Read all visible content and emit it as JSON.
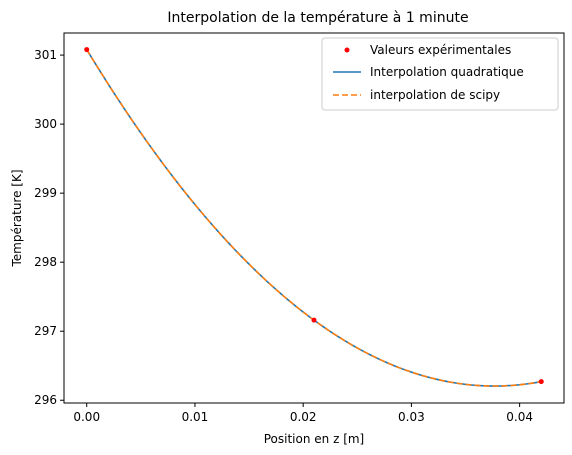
{
  "chart_data": {
    "type": "line",
    "title": "Interpolation de la température à 1 minute",
    "xlabel": "Position en z [m]",
    "ylabel": "Température [K]",
    "xlim": [
      -0.0021,
      0.0441
    ],
    "ylim": [
      295.96,
      301.32
    ],
    "xticks": [
      0.0,
      0.01,
      0.02,
      0.03,
      0.04
    ],
    "xtick_labels": [
      "0.00",
      "0.01",
      "0.02",
      "0.03",
      "0.04"
    ],
    "yticks": [
      296,
      297,
      298,
      299,
      300,
      301
    ],
    "ytick_labels": [
      "296",
      "297",
      "298",
      "299",
      "300",
      "301"
    ],
    "grid": false,
    "legend_position": "top-right",
    "series": [
      {
        "name": "Valeurs expérimentales",
        "style": "points",
        "color": "#ff0000",
        "x": [
          0.0,
          0.021,
          0.042
        ],
        "y": [
          301.08,
          297.16,
          296.27
        ]
      },
      {
        "name": "Interpolation quadratique",
        "style": "solid",
        "color": "#1f77b4",
        "x": [
          0.0,
          0.021,
          0.042
        ],
        "y": [
          301.08,
          297.16,
          296.27
        ]
      },
      {
        "name": "interpolation de scipy",
        "style": "dashed",
        "color": "#ff7f0e",
        "x": [
          0.0,
          0.021,
          0.042
        ],
        "y": [
          301.08,
          297.16,
          296.27
        ]
      }
    ]
  }
}
